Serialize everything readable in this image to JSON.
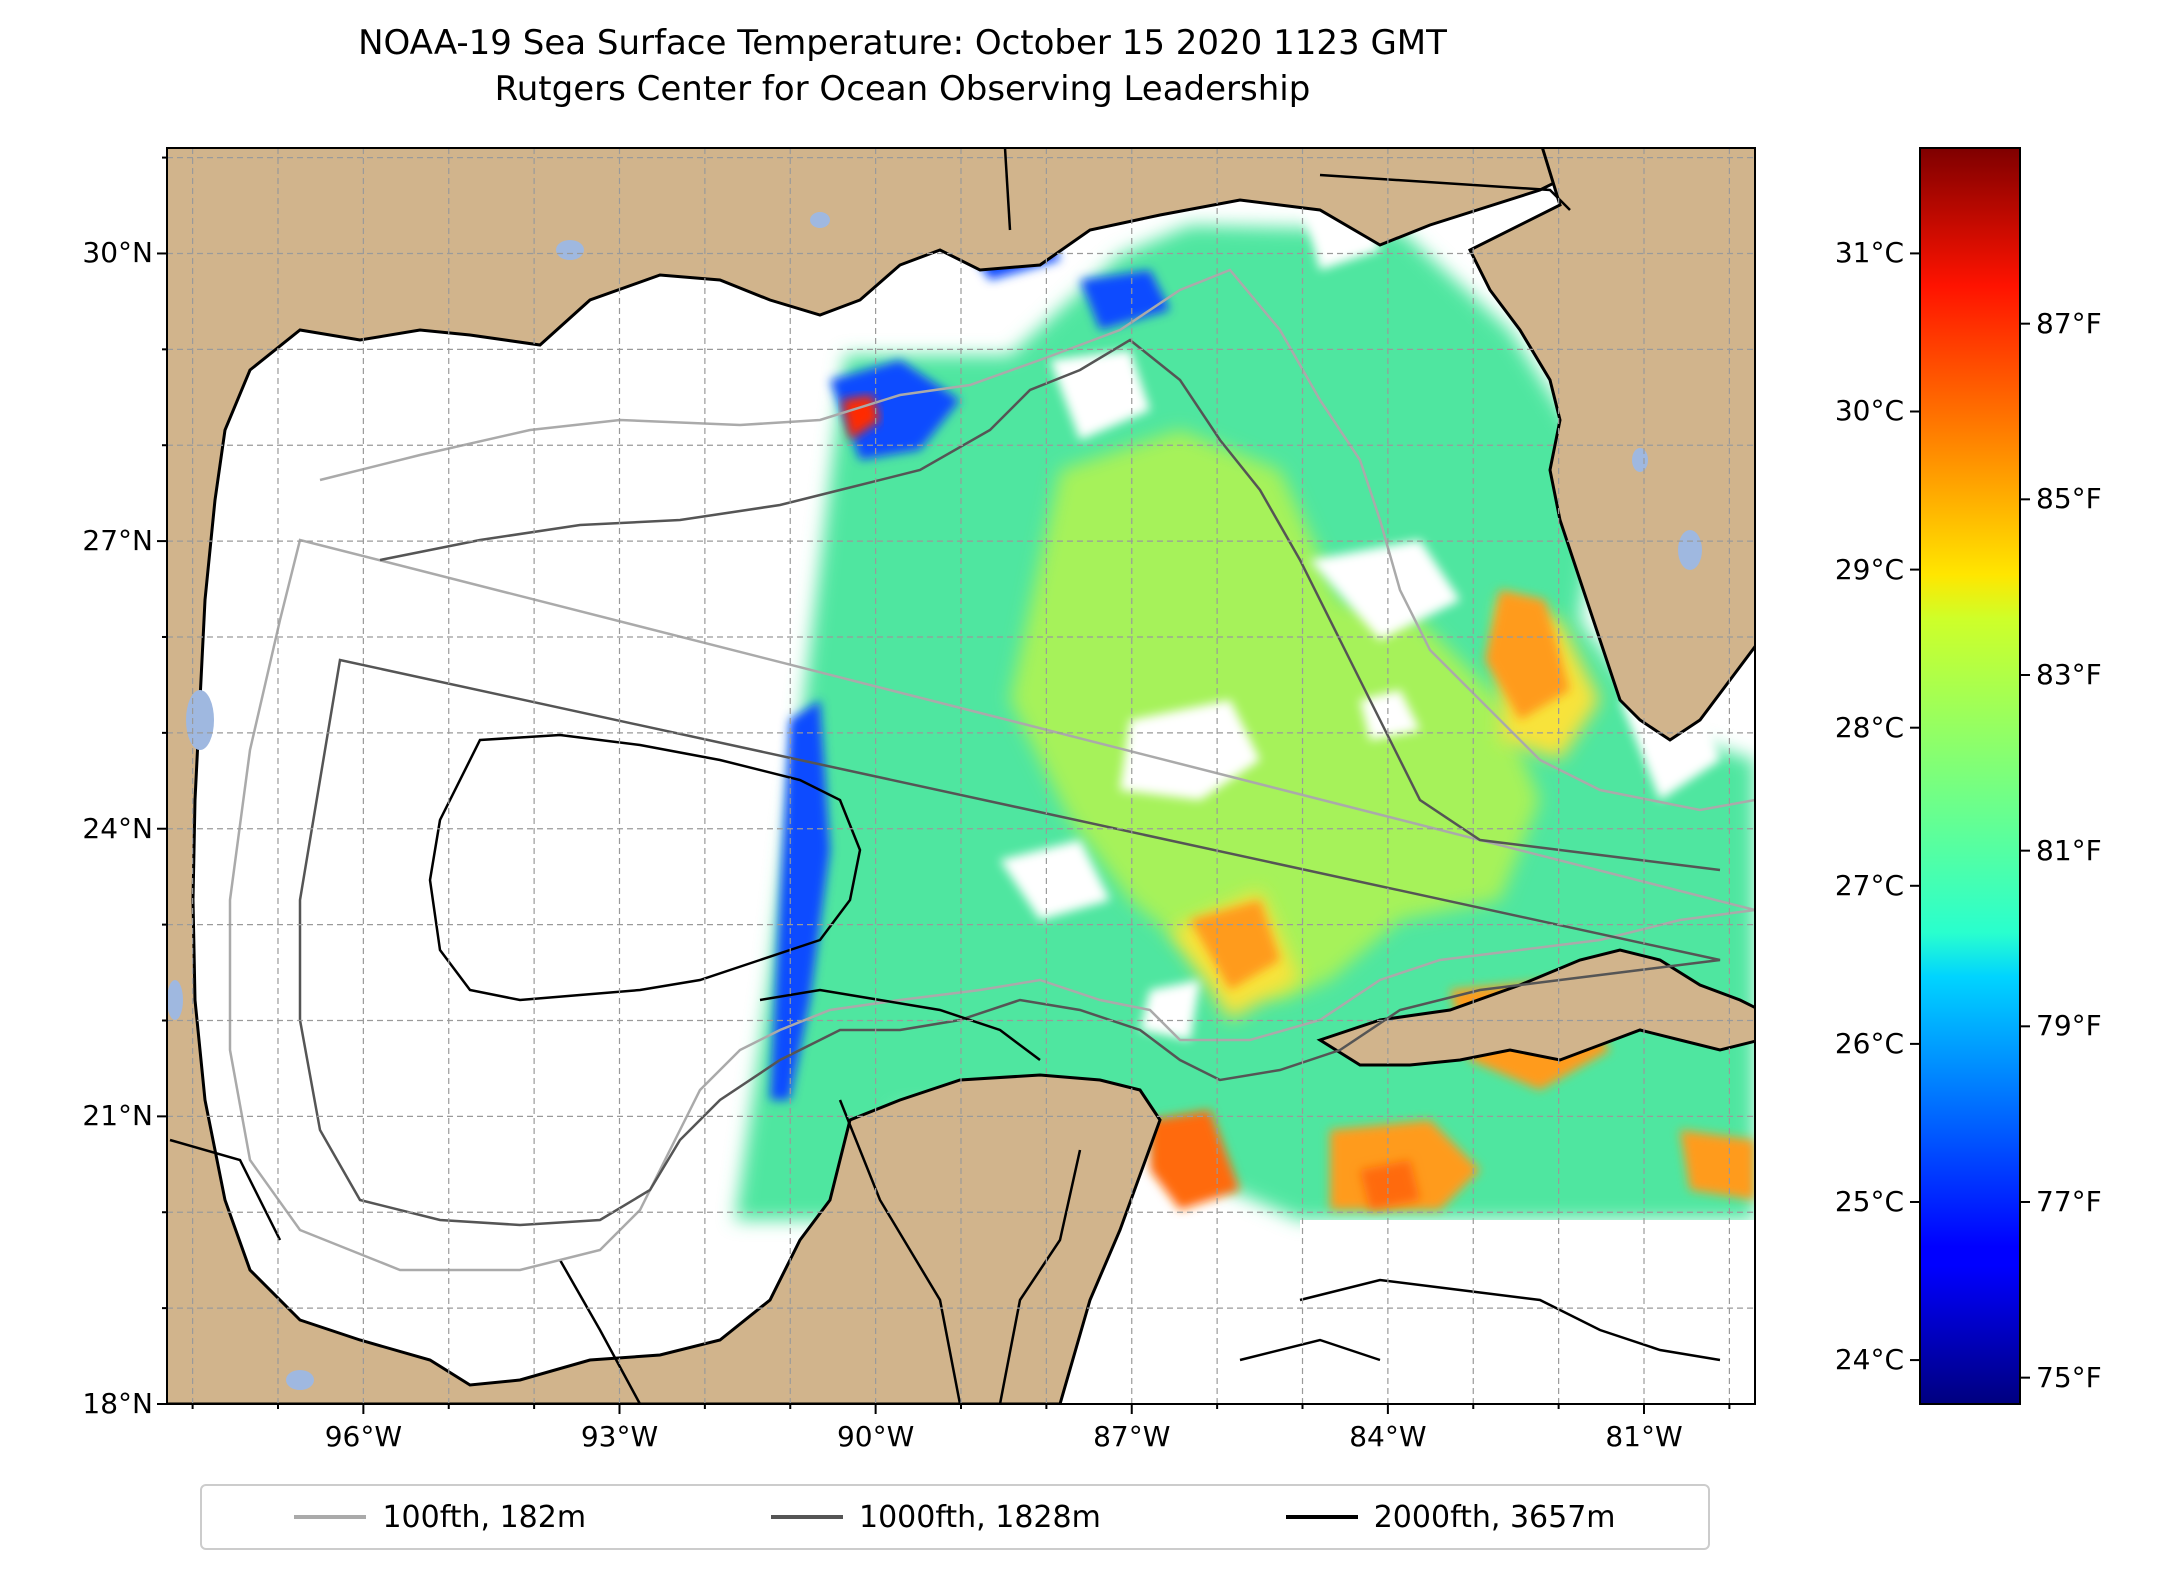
{
  "title": "NOAA-19 Sea Surface Temperature: October 15 2020 1123 GMT",
  "subtitle": "Rutgers Center for Ocean Observing Leadership",
  "map": {
    "lon_range": [
      -98.3,
      -79.7
    ],
    "lat_range": [
      18,
      31.1
    ],
    "lat_ticks": [
      {
        "value": 18,
        "label": "18°N"
      },
      {
        "value": 21,
        "label": "21°N"
      },
      {
        "value": 24,
        "label": "24°N"
      },
      {
        "value": 27,
        "label": "27°N"
      },
      {
        "value": 30,
        "label": "30°N"
      }
    ],
    "lon_ticks": [
      {
        "value": -96,
        "label": "96°W"
      },
      {
        "value": -93,
        "label": "93°W"
      },
      {
        "value": -90,
        "label": "90°W"
      },
      {
        "value": -87,
        "label": "87°W"
      },
      {
        "value": -84,
        "label": "84°W"
      },
      {
        "value": -81,
        "label": "81°W"
      }
    ],
    "colors": {
      "land": "#d1b48c",
      "ocean_nodata": "#ffffff",
      "lakes": "#9fb8e0"
    }
  },
  "colorbar": {
    "colormap": "jet",
    "celsius_ticks": [
      {
        "value": 24,
        "label": "24°C"
      },
      {
        "value": 25,
        "label": "25°C"
      },
      {
        "value": 26,
        "label": "26°C"
      },
      {
        "value": 27,
        "label": "27°C"
      },
      {
        "value": 28,
        "label": "28°C"
      },
      {
        "value": 29,
        "label": "29°C"
      },
      {
        "value": 30,
        "label": "30°C"
      },
      {
        "value": 31,
        "label": "31°C"
      }
    ],
    "fahrenheit_ticks": [
      {
        "value": 75,
        "label": "75°F"
      },
      {
        "value": 77,
        "label": "77°F"
      },
      {
        "value": 79,
        "label": "79°F"
      },
      {
        "value": 81,
        "label": "81°F"
      },
      {
        "value": 83,
        "label": "83°F"
      },
      {
        "value": 85,
        "label": "85°F"
      },
      {
        "value": 87,
        "label": "87°F"
      }
    ],
    "f_range": [
      74.7,
      89
    ]
  },
  "legend": [
    {
      "label": "100fth, 182m",
      "color": "#aaaaaa"
    },
    {
      "label": "1000fth, 1828m",
      "color": "#555555"
    },
    {
      "label": "2000fth, 3657m",
      "color": "#000000"
    }
  ]
}
